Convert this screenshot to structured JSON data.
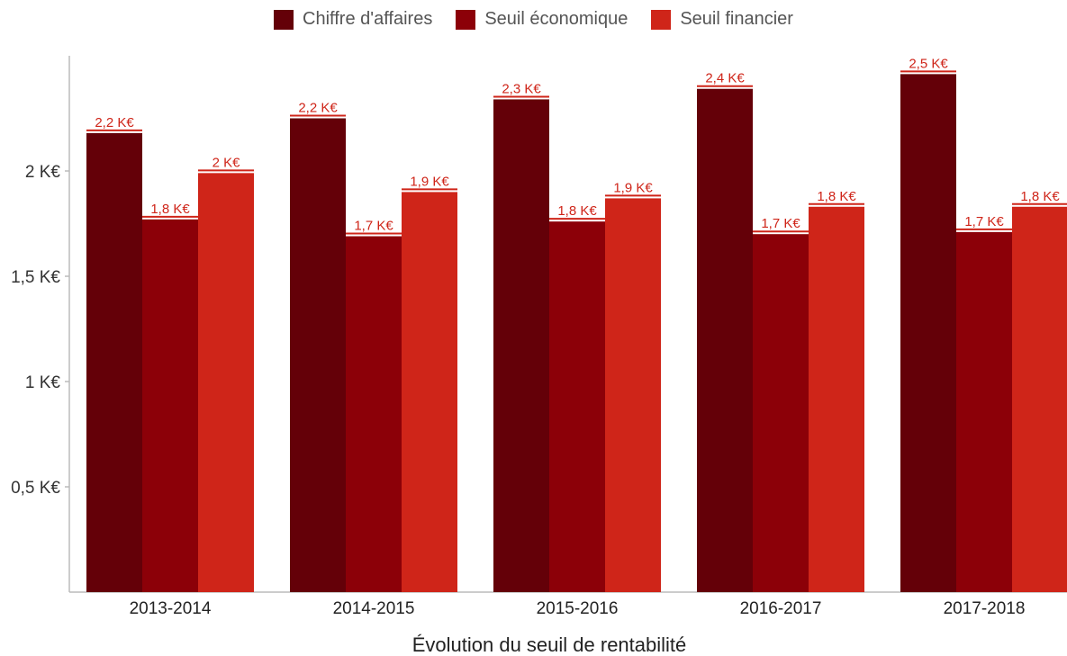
{
  "chart_data": {
    "type": "bar",
    "title": "",
    "xlabel": "Évolution du seuil de rentabilité",
    "ylabel": "",
    "categories": [
      "2013-2014",
      "2014-2015",
      "2015-2016",
      "2016-2017",
      "2017-2018"
    ],
    "series": [
      {
        "name": "Chiffre d'affaires",
        "color": "#640008",
        "values": [
          2.18,
          2.25,
          2.34,
          2.39,
          2.46
        ],
        "labels": [
          "2,2 K€",
          "2,2 K€",
          "2,3 K€",
          "2,4 K€",
          "2,5 K€"
        ]
      },
      {
        "name": "Seuil économique",
        "color": "#8c0008",
        "values": [
          1.77,
          1.69,
          1.76,
          1.7,
          1.71
        ],
        "labels": [
          "1,8 K€",
          "1,7 K€",
          "1,8 K€",
          "1,7 K€",
          "1,7 K€"
        ]
      },
      {
        "name": "Seuil financier",
        "color": "#cf2519",
        "values": [
          1.99,
          1.9,
          1.87,
          1.83,
          1.83
        ],
        "labels": [
          "2 K€",
          "1,9 K€",
          "1,9 K€",
          "1,8 K€",
          "1,8 K€"
        ]
      }
    ],
    "yticks": [
      {
        "value": 0.5,
        "label": "0,5 K€"
      },
      {
        "value": 1.0,
        "label": "1 K€"
      },
      {
        "value": 1.5,
        "label": "1,5 K€"
      },
      {
        "value": 2.0,
        "label": "2 K€"
      }
    ],
    "ylim": [
      0,
      2.55
    ],
    "grid": false,
    "legend_position": "top-center",
    "label_color": "#cf2519"
  }
}
